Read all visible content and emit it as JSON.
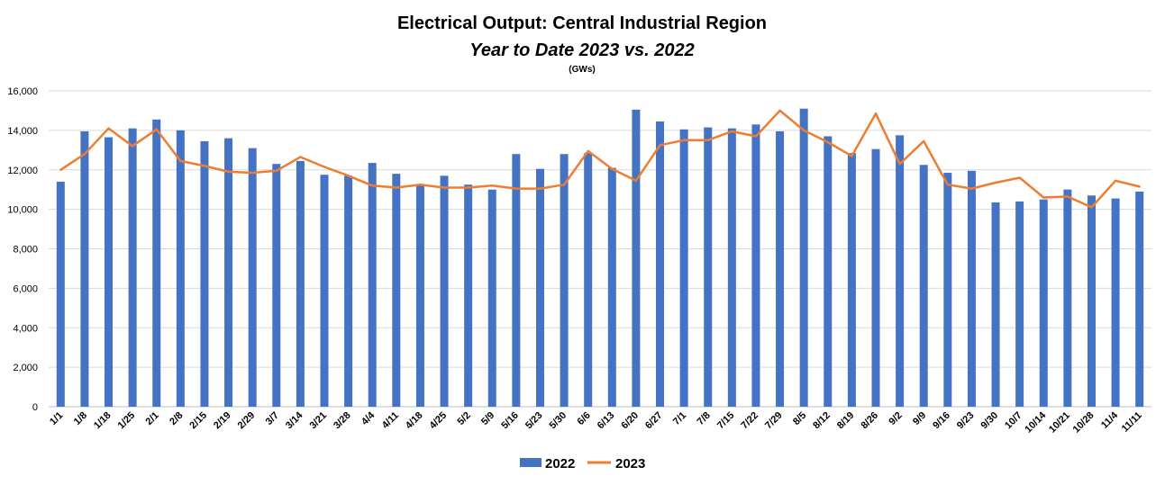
{
  "chart_data": {
    "type": "bar",
    "title": "Electrical Output:  Central Industrial Region",
    "subtitle": "Year to Date 2023 vs. 2022",
    "unit_label": "(GWs)",
    "categories": [
      "1/1",
      "1/8",
      "1/18",
      "1/25",
      "2/1",
      "2/8",
      "2/15",
      "2/19",
      "2/29",
      "3/7",
      "3/14",
      "3/21",
      "3/28",
      "4/4",
      "4/11",
      "4/18",
      "4/25",
      "5/2",
      "5/9",
      "5/16",
      "5/23",
      "5/30",
      "6/6",
      "6/13",
      "6/20",
      "6/27",
      "7/1",
      "7/8",
      "7/15",
      "7/22",
      "7/29",
      "8/5",
      "8/12",
      "8/19",
      "8/26",
      "9/2",
      "9/9",
      "9/16",
      "9/23",
      "9/30",
      "10/7",
      "10/14",
      "10/21",
      "10/28",
      "11/4",
      "11/11"
    ],
    "series": [
      {
        "name": "2022",
        "type": "bar",
        "color": "#4472C4",
        "values": [
          11400,
          13950,
          13650,
          14100,
          14550,
          14000,
          13450,
          13600,
          13100,
          12300,
          12450,
          11750,
          11700,
          12350,
          11800,
          11250,
          11700,
          11250,
          11000,
          12800,
          12050,
          12800,
          12850,
          12100,
          15050,
          14450,
          14050,
          14150,
          14100,
          14300,
          13950,
          15100,
          13700,
          12850,
          13050,
          13750,
          12250,
          11850,
          11950,
          10350,
          10400,
          10500,
          11000,
          10700,
          10550,
          10900
        ]
      },
      {
        "name": "2023",
        "type": "line",
        "color": "#ED7D31",
        "values": [
          12000,
          12800,
          14100,
          13200,
          14050,
          12450,
          12200,
          11900,
          11850,
          11950,
          12650,
          12150,
          11700,
          11200,
          11100,
          11250,
          11100,
          11100,
          11200,
          11050,
          11050,
          11250,
          12950,
          12050,
          11450,
          13250,
          13500,
          13500,
          13950,
          13700,
          15000,
          14000,
          13400,
          12700,
          14850,
          12300,
          13450,
          11250,
          11050,
          11350,
          11600,
          10600,
          10650,
          10100,
          11450,
          11150
        ]
      }
    ],
    "y_ticks": [
      "0",
      "2,000",
      "4,000",
      "6,000",
      "8,000",
      "10,000",
      "12,000",
      "14,000",
      "16,000"
    ],
    "ylim": [
      0,
      16000
    ],
    "grid": true,
    "legend": "bottom-center"
  }
}
